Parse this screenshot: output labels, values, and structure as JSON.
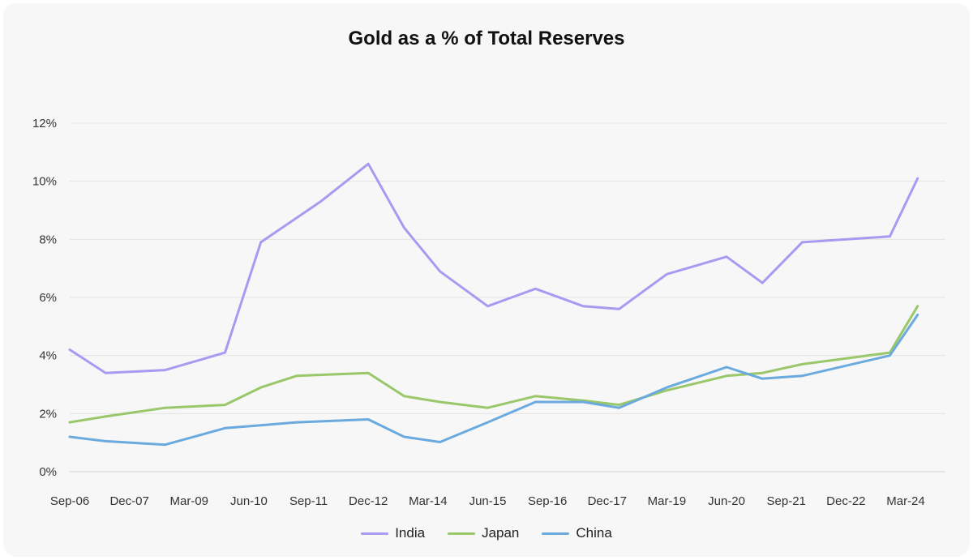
{
  "chart_data": {
    "type": "line",
    "title": "Gold as a % of Total Reserves",
    "xlabel": "",
    "ylabel": "",
    "x_tick_labels": [
      "Sep-06",
      "Dec-07",
      "Mar-09",
      "Jun-10",
      "Sep-11",
      "Dec-12",
      "Mar-14",
      "Jun-15",
      "Sep-16",
      "Dec-17",
      "Mar-19",
      "Jun-20",
      "Sep-21",
      "Dec-22",
      "Mar-24"
    ],
    "y_tick_labels": [
      "0%",
      "2%",
      "4%",
      "6%",
      "8%",
      "10%",
      "12%"
    ],
    "ylim": [
      0,
      12
    ],
    "grid": true,
    "legend_position": "bottom",
    "series": [
      {
        "name": "India",
        "color": "#a99af1",
        "points": [
          [
            "Sep-06",
            4.2
          ],
          [
            "Jun-07",
            3.4
          ],
          [
            "Sep-08",
            3.5
          ],
          [
            "Dec-09",
            4.1
          ],
          [
            "Sep-10",
            7.9
          ],
          [
            "Dec-11",
            9.3
          ],
          [
            "Dec-12",
            10.6
          ],
          [
            "Sep-13",
            8.4
          ],
          [
            "Jun-14",
            6.9
          ],
          [
            "Jun-15",
            5.7
          ],
          [
            "Jun-16",
            6.3
          ],
          [
            "Jun-17",
            5.7
          ],
          [
            "Mar-18",
            5.6
          ],
          [
            "Mar-19",
            6.8
          ],
          [
            "Jun-20",
            7.4
          ],
          [
            "Mar-21",
            6.5
          ],
          [
            "Jan-22",
            7.9
          ],
          [
            "Nov-23",
            8.1
          ],
          [
            "Jun-24",
            10.1
          ]
        ]
      },
      {
        "name": "Japan",
        "color": "#99c76a",
        "points": [
          [
            "Sep-06",
            1.7
          ],
          [
            "Jun-07",
            1.9
          ],
          [
            "Sep-08",
            2.2
          ],
          [
            "Dec-09",
            2.3
          ],
          [
            "Sep-10",
            2.9
          ],
          [
            "Jun-11",
            3.3
          ],
          [
            "Dec-12",
            3.4
          ],
          [
            "Sep-13",
            2.6
          ],
          [
            "Jun-14",
            2.4
          ],
          [
            "Jun-15",
            2.2
          ],
          [
            "Jun-16",
            2.6
          ],
          [
            "Jun-17",
            2.45
          ],
          [
            "Mar-18",
            2.3
          ],
          [
            "Mar-19",
            2.8
          ],
          [
            "Jun-20",
            3.3
          ],
          [
            "Mar-21",
            3.4
          ],
          [
            "Jan-22",
            3.7
          ],
          [
            "Nov-23",
            4.1
          ],
          [
            "Jun-24",
            5.7
          ]
        ]
      },
      {
        "name": "China",
        "color": "#6aaade",
        "points": [
          [
            "Sep-06",
            1.2
          ],
          [
            "Jun-07",
            1.05
          ],
          [
            "Sep-08",
            0.93
          ],
          [
            "Dec-09",
            1.5
          ],
          [
            "Sep-10",
            1.6
          ],
          [
            "Jun-11",
            1.7
          ],
          [
            "Dec-12",
            1.8
          ],
          [
            "Sep-13",
            1.2
          ],
          [
            "Jun-14",
            1.02
          ],
          [
            "Jun-15",
            1.7
          ],
          [
            "Jun-16",
            2.4
          ],
          [
            "Jun-17",
            2.4
          ],
          [
            "Mar-18",
            2.2
          ],
          [
            "Mar-19",
            2.9
          ],
          [
            "Jun-20",
            3.6
          ],
          [
            "Mar-21",
            3.2
          ],
          [
            "Jan-22",
            3.3
          ],
          [
            "Nov-23",
            4.0
          ],
          [
            "Jun-24",
            5.4
          ]
        ]
      }
    ]
  }
}
